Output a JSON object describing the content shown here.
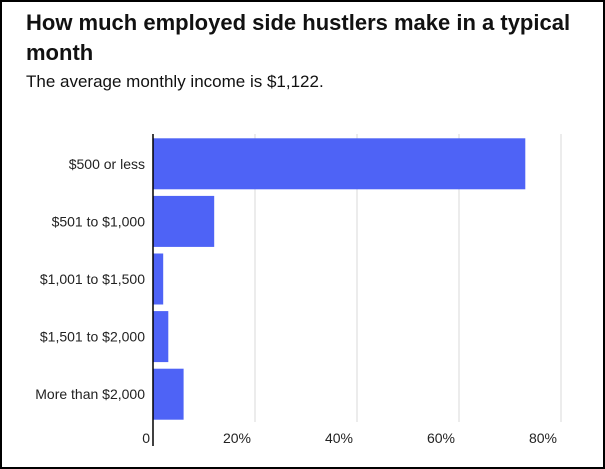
{
  "chart_data": {
    "type": "bar",
    "orientation": "horizontal",
    "title": "How much employed side hustlers make in a typical month",
    "subtitle": "The average monthly income is $1,122.",
    "categories": [
      "$500 or less",
      "$501 to $1,000",
      "$1,001 to $1,500",
      "$1,501 to $2,000",
      "More than $2,000"
    ],
    "values": [
      73,
      12,
      2,
      3,
      6
    ],
    "unit": "%",
    "xlim": [
      0,
      80
    ],
    "xticks": [
      {
        "value": 0,
        "label": "0"
      },
      {
        "value": 20,
        "label": "20%"
      },
      {
        "value": 40,
        "label": "40%"
      },
      {
        "value": 60,
        "label": "60%"
      },
      {
        "value": 80,
        "label": "80%"
      }
    ],
    "grid": true,
    "legend": "none",
    "colors": {
      "bar": "#4e63f6",
      "grid": "#d9d9d9",
      "axis": "#000000"
    }
  }
}
